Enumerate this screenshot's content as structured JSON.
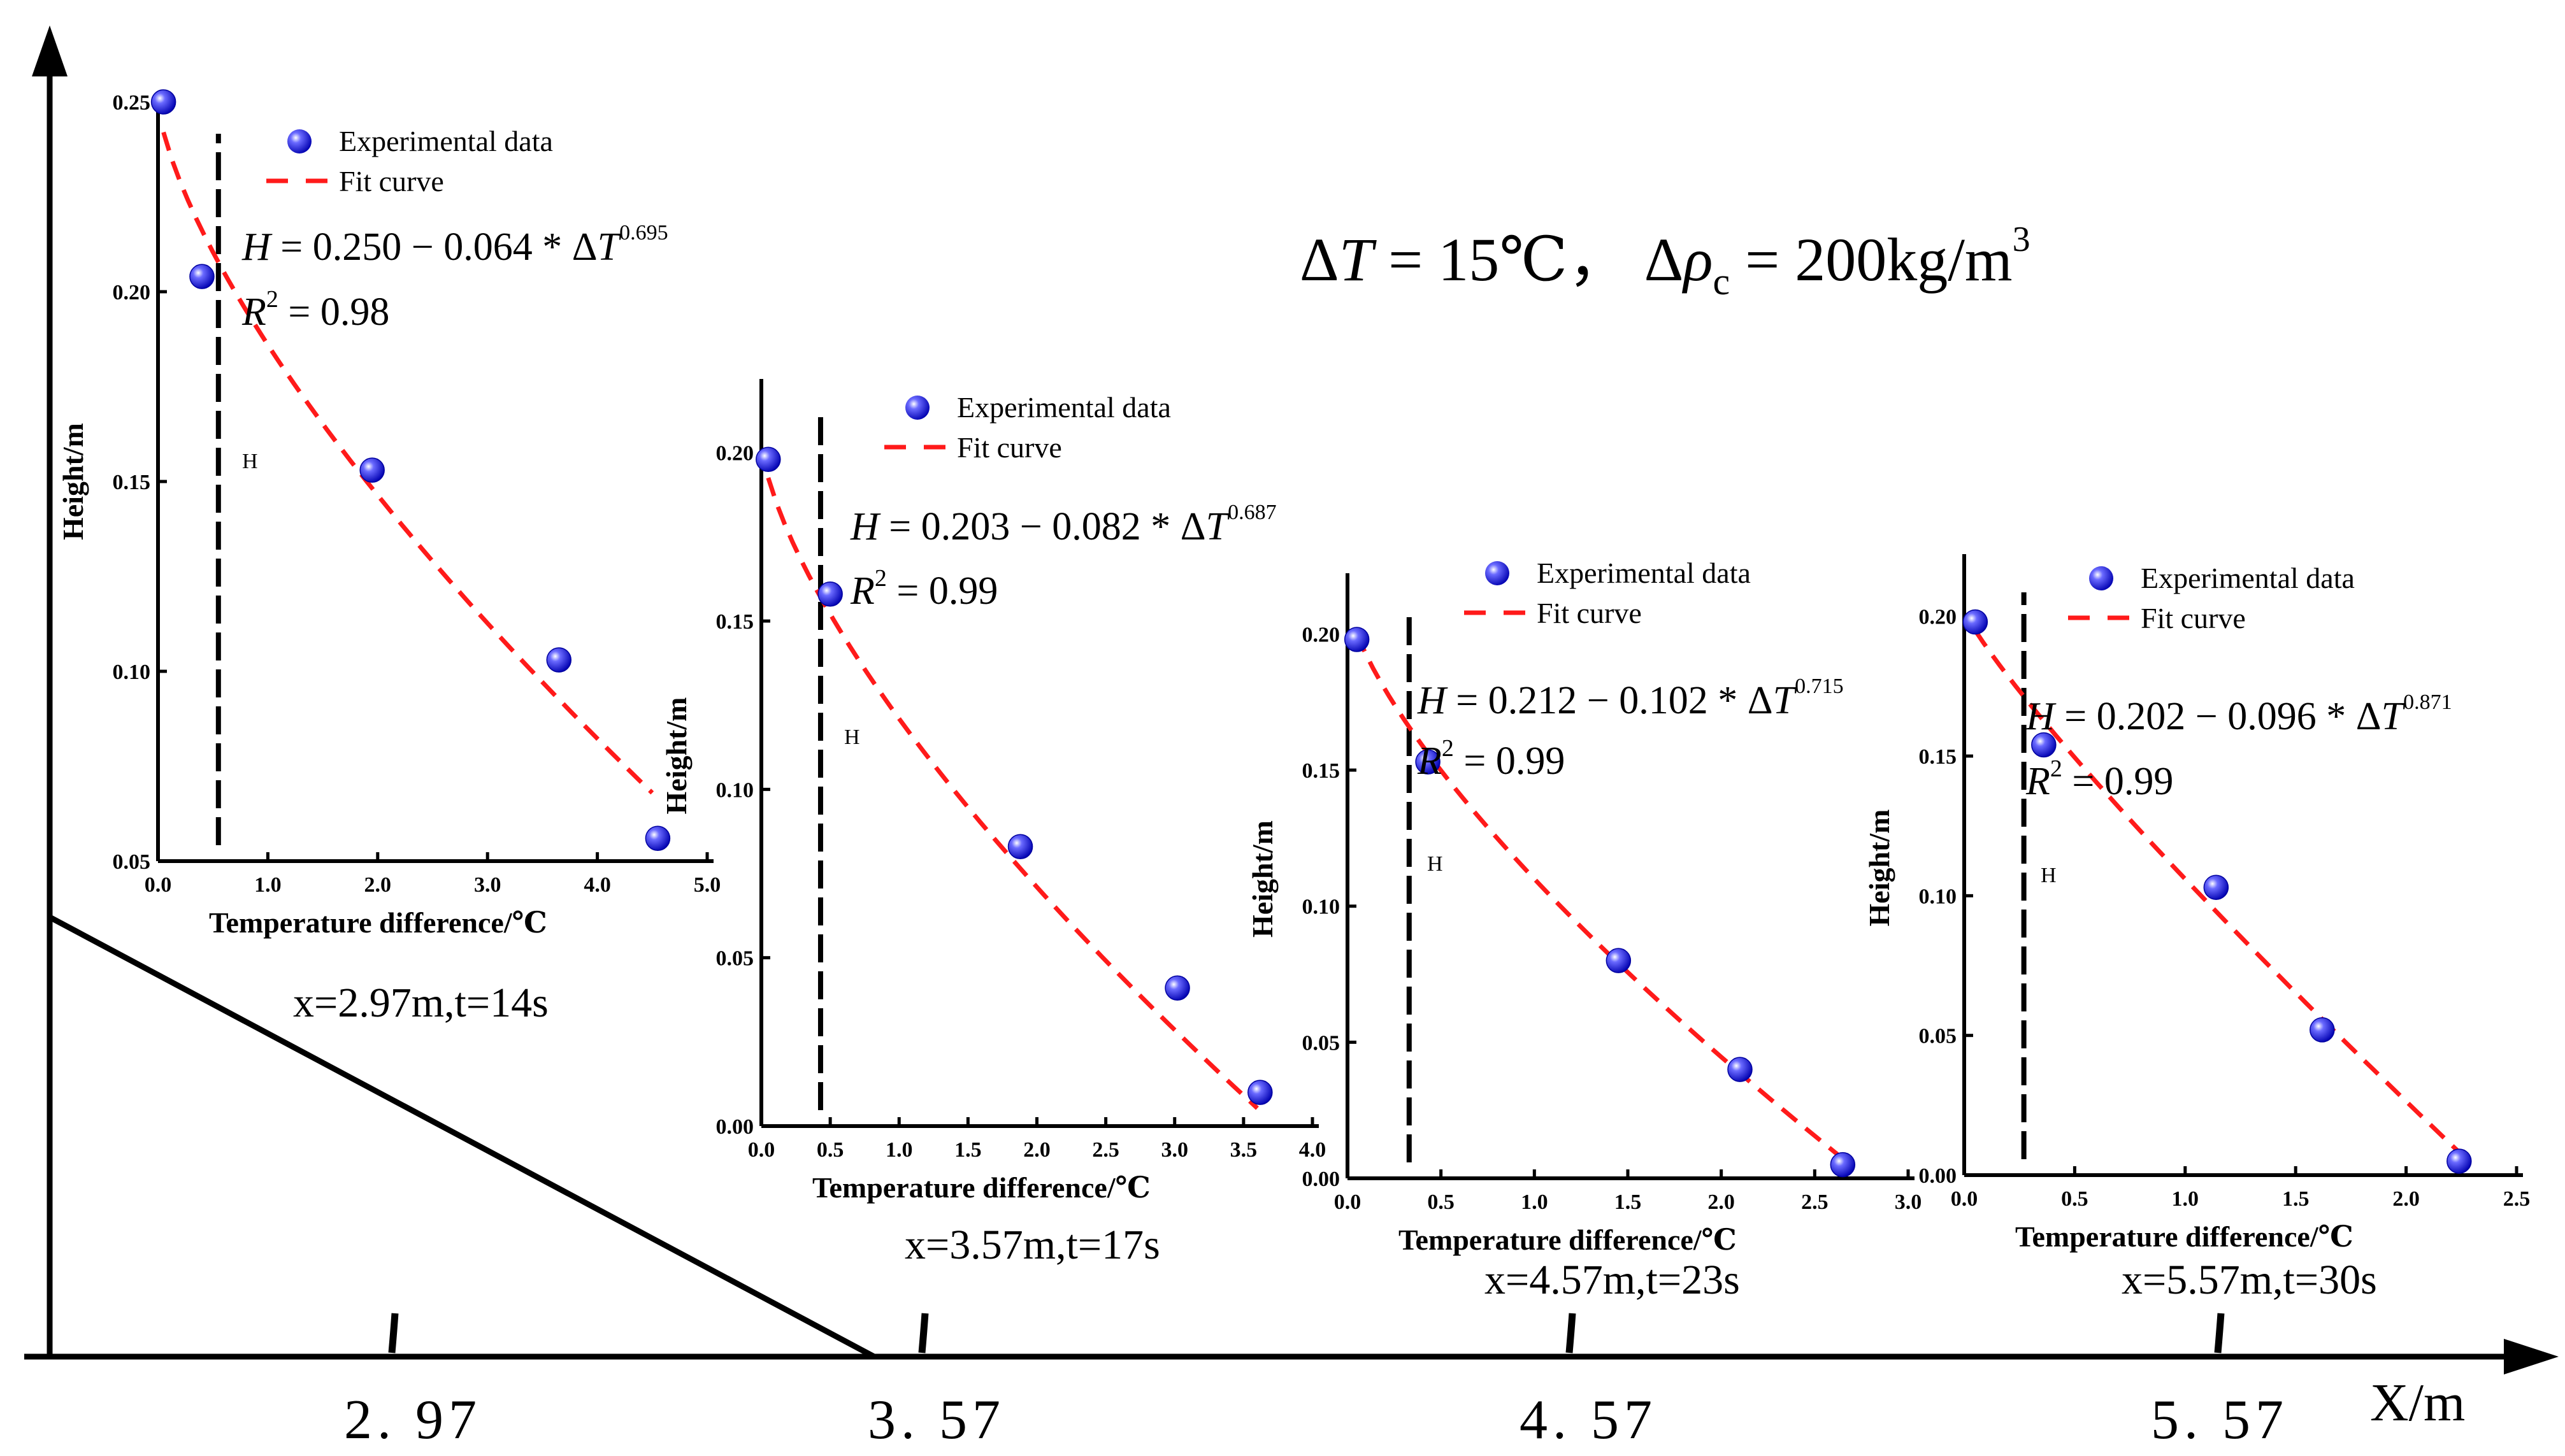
{
  "title": "ΔT = 15℃， Δρc = 200kg/m³",
  "title_parts": {
    "delta": "Δ",
    "t_symbol": "T",
    "t_value": " = 15℃， ",
    "rho": "ρ",
    "rho_sub": "c",
    "rho_value": " = 200kg/m",
    "cube": "3"
  },
  "colors": {
    "point": "#1a1aff",
    "fit": "#ff1a1a",
    "axis": "#000000"
  },
  "chart_data": [
    {
      "type": "scatter",
      "title": "",
      "xlabel": "Temperature difference/℃",
      "ylabel": "Height/m",
      "xlim": [
        0,
        5
      ],
      "ylim": [
        0.05,
        0.25
      ],
      "xticks": [
        "0.0",
        "1.0",
        "2.0",
        "3.0",
        "4.0",
        "5.0"
      ],
      "xtick_values": [
        0,
        1,
        2,
        3,
        4,
        5
      ],
      "yticks": [
        "0.05",
        "0.10",
        "0.15",
        "0.20",
        "0.25"
      ],
      "ytick_values": [
        0.05,
        0.1,
        0.15,
        0.2,
        0.25
      ],
      "series": [
        {
          "name": "Experimental data",
          "x": [
            0.05,
            0.4,
            1.95,
            3.65,
            4.55
          ],
          "y": [
            0.25,
            0.204,
            0.153,
            0.103,
            0.056
          ]
        },
        {
          "name": "Fit curve",
          "model": {
            "a": 0.25,
            "b": 0.064,
            "n": 0.695
          },
          "x_range": [
            0.05,
            4.5
          ]
        }
      ],
      "equation": {
        "lhs": "H",
        "a": "0.250",
        "b": "0.064",
        "exp": "0.695"
      },
      "r2": "0.98",
      "h_marker_x": 0.55,
      "h_label": "H",
      "caption": "x=2.97m,t=14s"
    },
    {
      "type": "scatter",
      "title": "",
      "xlabel": "Temperature difference/℃",
      "ylabel": "Height/m",
      "xlim": [
        0,
        4
      ],
      "ylim": [
        0,
        0.22
      ],
      "xticks": [
        "0.0",
        "0.5",
        "1.0",
        "1.5",
        "2.0",
        "2.5",
        "3.0",
        "3.5",
        "4.0"
      ],
      "xtick_values": [
        0,
        0.5,
        1,
        1.5,
        2,
        2.5,
        3,
        3.5,
        4
      ],
      "yticks": [
        "0.00",
        "0.05",
        "0.10",
        "0.15",
        "0.20"
      ],
      "ytick_values": [
        0,
        0.05,
        0.1,
        0.15,
        0.2
      ],
      "series": [
        {
          "name": "Experimental data",
          "x": [
            0.05,
            0.5,
            1.88,
            3.02,
            3.62
          ],
          "y": [
            0.198,
            0.158,
            0.083,
            0.041,
            0.01
          ]
        },
        {
          "name": "Fit curve",
          "model": {
            "a": 0.203,
            "b": 0.082,
            "n": 0.687
          },
          "x_range": [
            0.05,
            3.6
          ]
        }
      ],
      "equation": {
        "lhs": "H",
        "a": "0.203",
        "b": "0.082",
        "exp": "0.687"
      },
      "r2": "0.99",
      "h_marker_x": 0.43,
      "h_label": "H",
      "caption": "x=3.57m,t=17s"
    },
    {
      "type": "scatter",
      "title": "",
      "xlabel": "Temperature difference/℃",
      "ylabel": "Height/m",
      "xlim": [
        0,
        3
      ],
      "ylim": [
        0,
        0.22
      ],
      "xticks": [
        "0.0",
        "0.5",
        "1.0",
        "1.5",
        "2.0",
        "2.5",
        "3.0"
      ],
      "xtick_values": [
        0,
        0.5,
        1,
        1.5,
        2,
        2.5,
        3
      ],
      "yticks": [
        "0.00",
        "0.05",
        "0.10",
        "0.15",
        "0.20"
      ],
      "ytick_values": [
        0,
        0.05,
        0.1,
        0.15,
        0.2
      ],
      "series": [
        {
          "name": "Experimental data",
          "x": [
            0.05,
            0.43,
            1.45,
            2.1,
            2.65
          ],
          "y": [
            0.198,
            0.153,
            0.08,
            0.04,
            0.005
          ]
        },
        {
          "name": "Fit curve",
          "model": {
            "a": 0.212,
            "b": 0.102,
            "n": 0.715
          },
          "x_range": [
            0.05,
            2.65
          ]
        }
      ],
      "equation": {
        "lhs": "H",
        "a": "0.212",
        "b": "0.102",
        "exp": "0.715"
      },
      "r2": "0.99",
      "h_marker_x": 0.33,
      "h_label": "H",
      "caption": "x=4.57m,t=23s"
    },
    {
      "type": "scatter",
      "title": "",
      "xlabel": "Temperature difference/℃",
      "ylabel": "Height/m",
      "xlim": [
        0,
        2.5
      ],
      "ylim": [
        0,
        0.22
      ],
      "xticks": [
        "0.0",
        "0.5",
        "1.0",
        "1.5",
        "2.0",
        "2.5"
      ],
      "xtick_values": [
        0,
        0.5,
        1,
        1.5,
        2,
        2.5
      ],
      "yticks": [
        "0.00",
        "0.05",
        "0.10",
        "0.15",
        "0.20"
      ],
      "ytick_values": [
        0,
        0.05,
        0.1,
        0.15,
        0.2
      ],
      "series": [
        {
          "name": "Experimental data",
          "x": [
            0.05,
            0.36,
            1.14,
            1.62,
            2.24
          ],
          "y": [
            0.198,
            0.154,
            0.103,
            0.052,
            0.005
          ]
        },
        {
          "name": "Fit curve",
          "model": {
            "a": 0.202,
            "b": 0.096,
            "n": 0.871
          },
          "x_range": [
            0.05,
            2.24
          ]
        }
      ],
      "equation": {
        "lhs": "H",
        "a": "0.202",
        "b": "0.096",
        "exp": "0.871"
      },
      "r2": "0.99",
      "h_marker_x": 0.27,
      "h_label": "H",
      "caption": "x=5.57m,t=30s"
    }
  ],
  "bottom_axis": {
    "label": "X/m",
    "ticks": [
      "2. 97",
      "3. 57",
      "4. 57",
      "5. 57"
    ]
  }
}
